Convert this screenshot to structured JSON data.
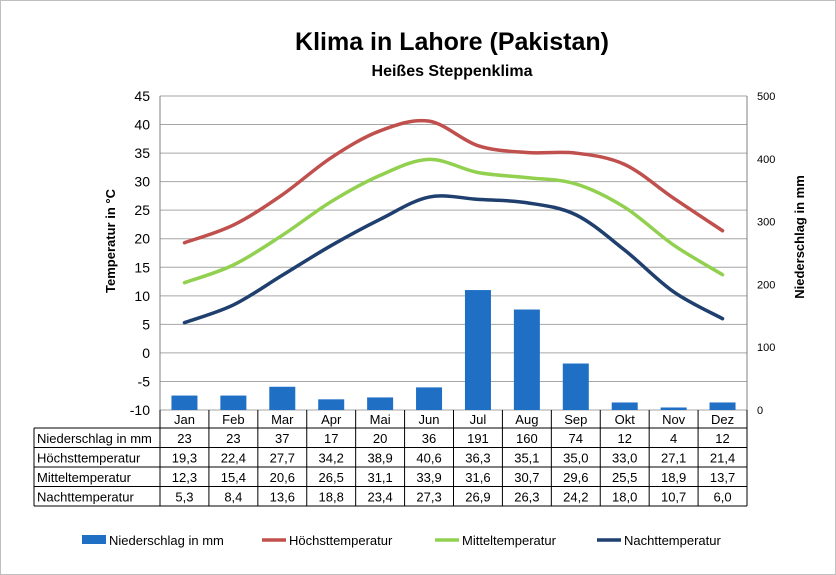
{
  "chart_data": {
    "type": "bar",
    "title": "Klima in Lahore (Pakistan)",
    "subtitle": "Heißes Steppenklima",
    "ylabel": "Temperatur in °C",
    "y2label": "Niederschlag in mm",
    "ylim": [
      -10,
      45
    ],
    "y2lim": [
      0,
      500
    ],
    "yticks": [
      "45",
      "40",
      "35",
      "30",
      "25",
      "20",
      "15",
      "10",
      "5",
      "0",
      "-5",
      "-10"
    ],
    "y2ticks": [
      "500",
      "400",
      "300",
      "200",
      "100",
      "0"
    ],
    "categories": [
      "Jan",
      "Feb",
      "Mar",
      "Apr",
      "Mai",
      "Jun",
      "Jul",
      "Aug",
      "Sep",
      "Okt",
      "Nov",
      "Dez"
    ],
    "grid": true,
    "legend": "bottom",
    "series": [
      {
        "name": "Niederschlag in mm",
        "type": "bar",
        "axis": "right",
        "color": "#1f6fc5",
        "values": [
          23,
          23,
          37,
          17,
          20,
          36,
          191,
          160,
          74,
          12,
          4,
          12
        ],
        "labels": [
          "23",
          "23",
          "37",
          "17",
          "20",
          "36",
          "191",
          "160",
          "74",
          "12",
          "4",
          "12"
        ]
      },
      {
        "name": "Höchsttemperatur",
        "type": "line",
        "axis": "left",
        "color": "#c0504d",
        "values": [
          19.3,
          22.4,
          27.7,
          34.2,
          38.9,
          40.6,
          36.3,
          35.1,
          35.0,
          33.0,
          27.1,
          21.4
        ],
        "labels": [
          "19,3",
          "22,4",
          "27,7",
          "34,2",
          "38,9",
          "40,6",
          "36,3",
          "35,1",
          "35,0",
          "33,0",
          "27,1",
          "21,4"
        ]
      },
      {
        "name": "Mitteltemperatur",
        "type": "line",
        "axis": "left",
        "color": "#92d050",
        "values": [
          12.3,
          15.4,
          20.6,
          26.5,
          31.1,
          33.9,
          31.6,
          30.7,
          29.6,
          25.5,
          18.9,
          13.7
        ],
        "labels": [
          "12,3",
          "15,4",
          "20,6",
          "26,5",
          "31,1",
          "33,9",
          "31,6",
          "30,7",
          "29,6",
          "25,5",
          "18,9",
          "13,7"
        ]
      },
      {
        "name": "Nachttemperatur",
        "type": "line",
        "axis": "left",
        "color": "#1f3f6e",
        "values": [
          5.3,
          8.4,
          13.6,
          18.8,
          23.4,
          27.3,
          26.9,
          26.3,
          24.2,
          18.0,
          10.7,
          6.0
        ],
        "labels": [
          "5,3",
          "8,4",
          "13,6",
          "18,8",
          "23,4",
          "27,3",
          "26,9",
          "26,3",
          "24,2",
          "18,0",
          "10,7",
          "6,0"
        ]
      }
    ]
  }
}
